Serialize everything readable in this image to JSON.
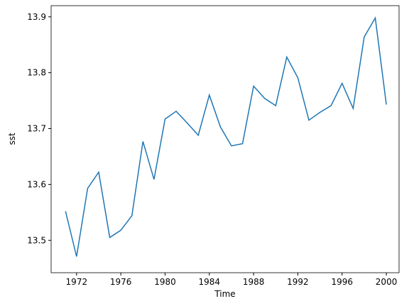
{
  "chart_data": {
    "type": "line",
    "x": [
      1971,
      1972,
      1973,
      1974,
      1975,
      1976,
      1977,
      1978,
      1979,
      1980,
      1981,
      1982,
      1983,
      1984,
      1985,
      1986,
      1987,
      1988,
      1989,
      1990,
      1991,
      1992,
      1993,
      1994,
      1995,
      1996,
      1997,
      1998,
      1999,
      2000
    ],
    "series": [
      {
        "name": "sst",
        "color": "#1f77b4",
        "values": [
          13.552,
          13.471,
          13.593,
          13.622,
          13.505,
          13.518,
          13.544,
          13.677,
          13.609,
          13.717,
          13.731,
          13.71,
          13.688,
          13.76,
          13.703,
          13.669,
          13.673,
          13.776,
          13.754,
          13.741,
          13.828,
          13.791,
          13.715,
          13.729,
          13.741,
          13.781,
          13.736,
          13.864,
          13.898,
          13.743
        ]
      }
    ],
    "xlabel": "Time",
    "ylabel": "sst",
    "xlim": [
      1969.7,
      2001.15
    ],
    "ylim": [
      13.442,
      13.92
    ],
    "xticks": [
      1972,
      1976,
      1980,
      1984,
      1988,
      1992,
      1996,
      2000
    ],
    "yticks": [
      13.5,
      13.6,
      13.7,
      13.8,
      13.9
    ]
  }
}
